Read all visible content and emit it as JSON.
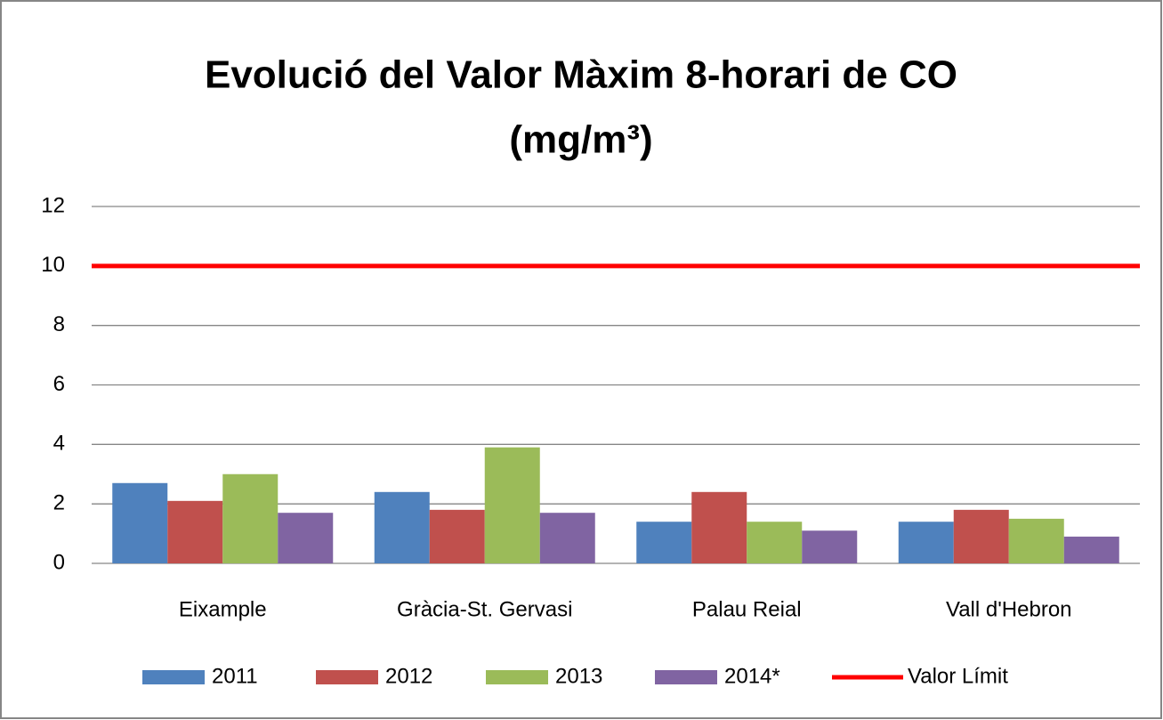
{
  "chart_data": {
    "type": "bar",
    "title": [
      "Evolució del Valor Màxim 8-horari de CO",
      "(mg/m³)"
    ],
    "categories": [
      "Eixample",
      "Gràcia-St. Gervasi",
      "Palau Reial",
      "Vall d'Hebron"
    ],
    "series": [
      {
        "name": "2011",
        "color": "#4f81bd",
        "values": [
          2.7,
          2.4,
          1.4,
          1.4
        ]
      },
      {
        "name": "2012",
        "color": "#c0504d",
        "values": [
          2.1,
          1.8,
          2.4,
          1.8
        ]
      },
      {
        "name": "2013",
        "color": "#9bbb59",
        "values": [
          3.0,
          3.9,
          1.4,
          1.5
        ]
      },
      {
        "name": "2014*",
        "color": "#8064a2",
        "values": [
          1.7,
          1.7,
          1.1,
          0.9
        ]
      },
      {
        "name": "Valor Límit",
        "color": "#ff0000",
        "type": "line",
        "values": [
          10,
          10,
          10,
          10
        ]
      }
    ],
    "ylim": [
      0,
      12
    ],
    "yticks": [
      0,
      2,
      4,
      6,
      8,
      10,
      12
    ],
    "grid": true,
    "legend": "bottom"
  }
}
